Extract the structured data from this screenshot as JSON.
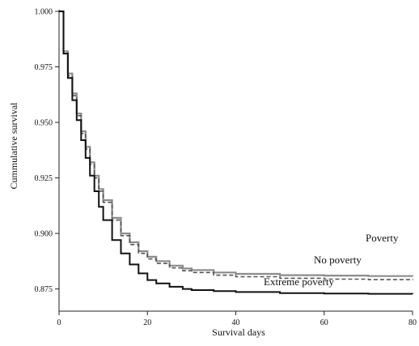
{
  "chart_data": {
    "type": "line",
    "step": true,
    "xlabel": "Survival days",
    "ylabel": "Cummulative survival",
    "xlim": [
      0,
      80
    ],
    "ylim": [
      0.865,
      1.0
    ],
    "xticks": [
      0,
      20,
      40,
      60,
      80
    ],
    "yticks": [
      0.875,
      0.9,
      0.925,
      0.95,
      0.975,
      1.0
    ],
    "xtick_labels": [
      "0",
      "20",
      "40",
      "60",
      "80"
    ],
    "ytick_labels": [
      "0.875",
      "0.900",
      "0.925",
      "0.950",
      "0.975",
      "1.000"
    ],
    "grid": false,
    "series": [
      {
        "name": "Poverty",
        "color": "#8c8c8c",
        "dash": "solid",
        "x": [
          0,
          1,
          2,
          3,
          4,
          5,
          6,
          7,
          8,
          9,
          10,
          12,
          14,
          16,
          18,
          20,
          22,
          25,
          28,
          30,
          35,
          40,
          50,
          60,
          70,
          80
        ],
        "y": [
          1.0,
          0.982,
          0.972,
          0.963,
          0.954,
          0.946,
          0.939,
          0.932,
          0.926,
          0.92,
          0.915,
          0.907,
          0.9,
          0.896,
          0.892,
          0.8895,
          0.8875,
          0.8855,
          0.8842,
          0.8835,
          0.8824,
          0.8818,
          0.8812,
          0.881,
          0.8808,
          0.8807
        ]
      },
      {
        "name": "No poverty",
        "color": "#555555",
        "dash": "dashed",
        "x": [
          0,
          1,
          2,
          3,
          4,
          5,
          6,
          7,
          8,
          9,
          10,
          12,
          14,
          16,
          18,
          20,
          22,
          25,
          28,
          30,
          35,
          40,
          50,
          60,
          70,
          80
        ],
        "y": [
          1.0,
          0.981,
          0.971,
          0.962,
          0.953,
          0.945,
          0.938,
          0.931,
          0.925,
          0.919,
          0.914,
          0.906,
          0.899,
          0.895,
          0.891,
          0.8885,
          0.8865,
          0.8845,
          0.8832,
          0.8824,
          0.8812,
          0.8805,
          0.8798,
          0.8794,
          0.8792,
          0.879
        ]
      },
      {
        "name": "Extreme poverty",
        "color": "#111111",
        "dash": "solid",
        "x": [
          0,
          1,
          2,
          3,
          4,
          5,
          6,
          7,
          8,
          9,
          10,
          12,
          14,
          16,
          18,
          20,
          22,
          25,
          28,
          30,
          35,
          40,
          50,
          60,
          70,
          80
        ],
        "y": [
          1.0,
          0.981,
          0.97,
          0.96,
          0.951,
          0.942,
          0.934,
          0.926,
          0.919,
          0.912,
          0.906,
          0.897,
          0.891,
          0.886,
          0.882,
          0.879,
          0.8775,
          0.876,
          0.875,
          0.8745,
          0.874,
          0.8736,
          0.8731,
          0.8729,
          0.8728,
          0.8727
        ]
      }
    ]
  }
}
